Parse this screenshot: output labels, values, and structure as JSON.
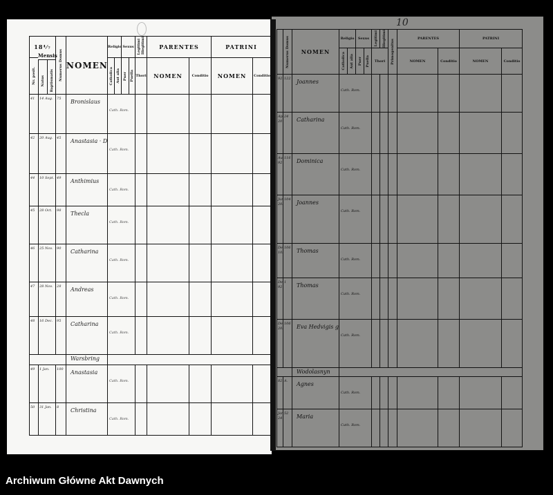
{
  "footer": {
    "archive_name": "Archiwum Główne Akt Dawnych"
  },
  "right_page_number": "10",
  "left_page": {
    "header": {
      "year": "18⁴⁄₇",
      "mensis": "Mensis",
      "nr_posit": "Nr. posit.",
      "natus": "Natus",
      "baptismatis": "Baptismatis",
      "numerus_domus": "Numerus Domus",
      "nomen": "NOMEN",
      "religio": "Religio",
      "catholica": "Catholica",
      "aut_alia": "Aut alia",
      "sexus": "Sexus",
      "puer": "Puer",
      "puella": "Puella",
      "legitimi": "Legitimi",
      "illegitimi": "Illegitimi",
      "thori": "Thori",
      "parentes": "PARENTES",
      "patrini": "PATRINI",
      "parentes_nomen": "NOMEN",
      "parentes_conditio": "Conditio",
      "patrini_nomen": "NOMEN",
      "patrini_conditio": "Conditio"
    },
    "rows": [
      {
        "type": "entry",
        "nr": "41",
        "date": "14 Aug.",
        "domus": "75",
        "name": "Bronislaus",
        "religio": "Cath. Rom."
      },
      {
        "type": "entry",
        "nr": "42",
        "date": "20 Aug.",
        "domus": "45",
        "name": "Anastasia · Dominica gem.",
        "religio": "Cath. Rom."
      },
      {
        "type": "entry",
        "nr": "44",
        "date": "10 Sept.",
        "domus": "49",
        "name": "Anthimius",
        "religio": "Cath. Rom."
      },
      {
        "type": "entry",
        "nr": "45",
        "date": "28 Oct.",
        "domus": "98",
        "name": "Thecla",
        "religio": "Cath. Rom."
      },
      {
        "type": "entry",
        "nr": "46",
        "date": "25 Nov.",
        "domus": "90",
        "name": "Catharina",
        "religio": "Cath. Rom."
      },
      {
        "type": "entry",
        "nr": "47",
        "date": "28 Nov.",
        "domus": "28",
        "name": "Andreas",
        "religio": "Cath. Rom."
      },
      {
        "type": "entry",
        "nr": "48",
        "date": "16 Dec.",
        "domus": "95",
        "name": "Catharina",
        "religio": "Cath. Rom."
      },
      {
        "type": "band",
        "name": "Warsbring"
      },
      {
        "type": "entry",
        "nr": "49",
        "date": "1 Jan.",
        "domus": "100",
        "name": "Anastasia",
        "religio": "Cath. Rom."
      },
      {
        "type": "entry",
        "nr": "50",
        "date": "31 Jan.",
        "domus": "8",
        "name": "Christina",
        "religio": "Cath. Rom."
      }
    ]
  },
  "right_page": {
    "header": {
      "numerus_domus": "Numerus Domus",
      "nomen": "NOMEN",
      "religio": "Religio",
      "catholica": "Catholica",
      "aut_alia": "Aut alia",
      "sexus": "Sexus",
      "puer": "Puer",
      "puella": "Puella",
      "legitimi": "Legitimi",
      "illegitimi": "Illegitimi",
      "thori": "Thori",
      "primogenitus": "Primogenitus",
      "parentes": "PARENTES",
      "patrini": "PATRINI",
      "parentes_nomen": "NOMEN",
      "parentes_conditio": "Conditio",
      "patrini_nomen": "NOMEN",
      "patrini_conditio": "Conditio"
    },
    "rows": [
      {
        "type": "entry",
        "date": "92",
        "domus": "122",
        "name": "Joannes",
        "religio": "Cath. Rom."
      },
      {
        "type": "entry",
        "date": "Aprilis 20",
        "domus": "24",
        "name": "Catharina",
        "religio": "Cath. Rom."
      },
      {
        "type": "entry",
        "date": "Aug. 92",
        "domus": "116",
        "name": "Dominica",
        "religio": "Cath. Rom."
      },
      {
        "type": "entry",
        "date": "Junii 202",
        "domus": "104",
        "name": "Joannes",
        "religio": "Cath. Rom."
      },
      {
        "type": "entry",
        "date": "Decembris 102",
        "domus": "106",
        "name": "Thomas",
        "religio": "Cath. Rom."
      },
      {
        "type": "entry",
        "date": "Decembris 92",
        "domus": "1",
        "name": "Thomas",
        "religio": "Cath. Rom."
      },
      {
        "type": "entry",
        "date": "Decembris 202",
        "domus": "106",
        "name": "Eva Hedvigis gemini",
        "religio": "Cath. Rom."
      },
      {
        "type": "band",
        "name": "Wodolasnyn"
      },
      {
        "type": "entry",
        "date": "82",
        "domus": "A.",
        "name": "Agnes",
        "religio": "Cath. Rom."
      },
      {
        "type": "entry",
        "date": "Januarii 241",
        "domus": "52",
        "name": "Maria",
        "religio": "Cath. Rom."
      }
    ]
  }
}
